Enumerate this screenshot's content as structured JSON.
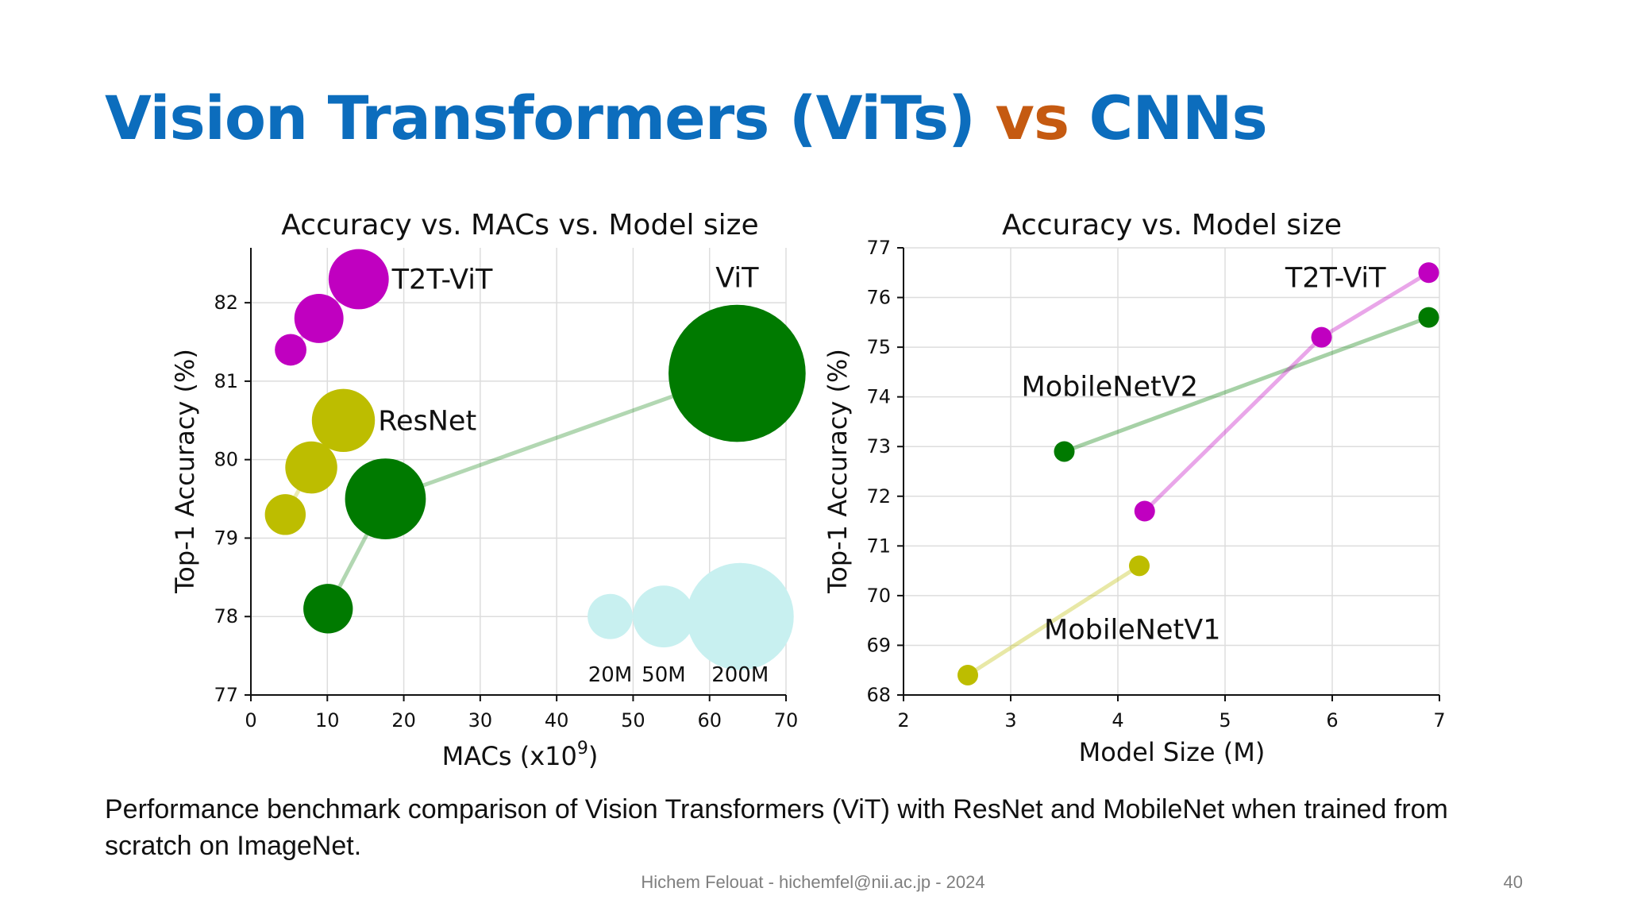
{
  "slide": {
    "title_part1": "Vision Transformers (ViTs) ",
    "title_part2": "vs",
    "title_part3": " CNNs",
    "caption": "Performance benchmark comparison of Vision Transformers (ViT) with ResNet and MobileNet when trained from scratch on ImageNet.",
    "footer": "Hichem Felouat - hichemfel@nii.ac.jp - 2024",
    "page_number": "40"
  },
  "colors": {
    "title_blue": "#0c6dbd",
    "title_orange": "#c55a11",
    "t2t_vit": "#c000c0",
    "vit": "#007a00",
    "resnet": "#bdbd00",
    "mobilenet_v2": "#007a00",
    "mobilenet_v1": "#bdbd00",
    "legend": "#c8f0f0"
  },
  "chart_data": [
    {
      "type": "scatter",
      "title": "Accuracy vs. MACs vs. Model size",
      "xlabel": "MACs (x10",
      "xlabel_sup": "9",
      "xlabel_end": ")",
      "ylabel": "Top-1 Accuracy (%)",
      "xlim": [
        0,
        70
      ],
      "ylim": [
        77,
        82.7
      ],
      "xticks": [
        0,
        10,
        20,
        30,
        40,
        50,
        60,
        70
      ],
      "yticks": [
        77,
        78,
        79,
        80,
        81,
        82
      ],
      "grid": true,
      "series": [
        {
          "name": "T2T-ViT",
          "color_key": "t2t_vit",
          "points": [
            {
              "x": 5.2,
              "y": 81.4,
              "size_m": 4.3
            },
            {
              "x": 8.9,
              "y": 81.8,
              "size_m": 21.5
            },
            {
              "x": 14.1,
              "y": 82.3,
              "size_m": 39.2
            }
          ],
          "label_anchor": 2
        },
        {
          "name": "ResNet",
          "color_key": "resnet",
          "points": [
            {
              "x": 4.5,
              "y": 79.3,
              "size_m": 11.7
            },
            {
              "x": 7.9,
              "y": 79.9,
              "size_m": 25.6
            },
            {
              "x": 12.1,
              "y": 80.5,
              "size_m": 44.6
            }
          ],
          "label_anchor": 2
        },
        {
          "name": "ViT",
          "color_key": "vit",
          "points": [
            {
              "x": 10.1,
              "y": 78.1,
              "size_m": 22
            },
            {
              "x": 17.6,
              "y": 79.5,
              "size_m": 86
            },
            {
              "x": 63.6,
              "y": 81.1,
              "size_m": 307
            }
          ],
          "label_anchor": 2
        }
      ],
      "size_legend": [
        {
          "label": "20M",
          "x": 47,
          "y": 78,
          "size_m": 20
        },
        {
          "label": "50M",
          "x": 54,
          "y": 78,
          "size_m": 50
        },
        {
          "label": "200M",
          "x": 64,
          "y": 78,
          "size_m": 200
        }
      ]
    },
    {
      "type": "line",
      "title": "Accuracy vs. Model size",
      "xlabel": "Model Size (M)",
      "ylabel": "Top-1 Accuracy (%)",
      "xlim": [
        2,
        7
      ],
      "ylim": [
        68,
        77
      ],
      "xticks": [
        2,
        3,
        4,
        5,
        6,
        7
      ],
      "yticks": [
        68,
        69,
        70,
        71,
        72,
        73,
        74,
        75,
        76,
        77
      ],
      "grid": true,
      "series": [
        {
          "name": "MobileNetV2",
          "color_key": "mobilenet_v2",
          "points": [
            {
              "x": 3.5,
              "y": 72.9
            },
            {
              "x": 6.9,
              "y": 75.6
            }
          ]
        },
        {
          "name": "T2T-ViT",
          "color_key": "t2t_vit",
          "points": [
            {
              "x": 4.25,
              "y": 71.7
            },
            {
              "x": 5.9,
              "y": 75.2
            },
            {
              "x": 6.9,
              "y": 76.5
            }
          ]
        },
        {
          "name": "MobileNetV1",
          "color_key": "mobilenet_v1",
          "points": [
            {
              "x": 2.6,
              "y": 68.4
            },
            {
              "x": 4.2,
              "y": 70.6
            }
          ]
        }
      ]
    }
  ]
}
